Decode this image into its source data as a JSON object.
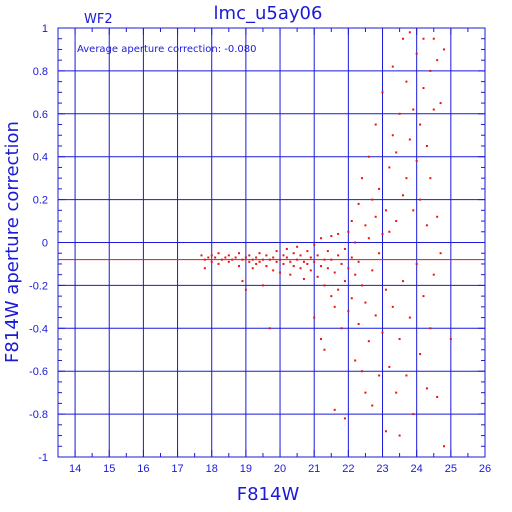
{
  "chart_data": {
    "type": "scatter",
    "title": "lmc_u5ay06",
    "chip_label": "WF2",
    "xlabel": "F814W",
    "ylabel": "F814W aperture correction",
    "annotation": "Average aperture correction: -0.080",
    "average": -0.08,
    "xlim": [
      13.5,
      26
    ],
    "ylim": [
      -1,
      1
    ],
    "x_ticks": [
      14,
      15,
      16,
      17,
      18,
      19,
      20,
      21,
      22,
      23,
      24,
      25,
      26
    ],
    "y_ticks": [
      -1,
      -0.8,
      -0.6,
      -0.4,
      -0.2,
      0,
      0.2,
      0.4,
      0.6,
      0.8,
      1
    ],
    "y_tick_labels": [
      "-1",
      "-0.8",
      "-0.6",
      "-0.4",
      "-0.2",
      "0",
      "0.2",
      "0.4",
      "0.6",
      "0.8",
      "1"
    ],
    "grid": true,
    "colors": {
      "axes": "#1a1ad8",
      "points": "#ee1111",
      "mean_line": "#ee1111"
    },
    "points": [
      [
        17.7,
        -0.06
      ],
      [
        17.8,
        -0.08
      ],
      [
        17.8,
        -0.12
      ],
      [
        17.9,
        -0.07
      ],
      [
        18.0,
        -0.09
      ],
      [
        18.0,
        -0.06
      ],
      [
        18.1,
        -0.07
      ],
      [
        18.2,
        -0.1
      ],
      [
        18.2,
        -0.05
      ],
      [
        18.3,
        -0.08
      ],
      [
        18.4,
        -0.07
      ],
      [
        18.5,
        -0.09
      ],
      [
        18.5,
        -0.06
      ],
      [
        18.6,
        -0.08
      ],
      [
        18.7,
        -0.07
      ],
      [
        18.8,
        -0.11
      ],
      [
        18.8,
        -0.05
      ],
      [
        18.9,
        -0.08
      ],
      [
        18.9,
        -0.18
      ],
      [
        19.0,
        -0.07
      ],
      [
        19.0,
        -0.22
      ],
      [
        19.1,
        -0.09
      ],
      [
        19.1,
        -0.06
      ],
      [
        19.2,
        -0.08
      ],
      [
        19.2,
        -0.12
      ],
      [
        19.3,
        -0.07
      ],
      [
        19.3,
        -0.1
      ],
      [
        19.4,
        -0.05
      ],
      [
        19.4,
        -0.09
      ],
      [
        19.5,
        -0.08
      ],
      [
        19.5,
        -0.2
      ],
      [
        19.6,
        -0.06
      ],
      [
        19.6,
        -0.11
      ],
      [
        19.7,
        -0.08
      ],
      [
        19.7,
        -0.4
      ],
      [
        19.8,
        -0.07
      ],
      [
        19.8,
        -0.13
      ],
      [
        19.9,
        -0.09
      ],
      [
        19.9,
        -0.04
      ],
      [
        20.0,
        -0.08
      ],
      [
        20.0,
        -0.14
      ],
      [
        20.1,
        -0.06
      ],
      [
        20.1,
        -0.1
      ],
      [
        20.2,
        -0.07
      ],
      [
        20.2,
        -0.03
      ],
      [
        20.3,
        -0.09
      ],
      [
        20.3,
        -0.15
      ],
      [
        20.4,
        -0.05
      ],
      [
        20.4,
        -0.11
      ],
      [
        20.5,
        -0.08
      ],
      [
        20.5,
        -0.02
      ],
      [
        20.6,
        -0.12
      ],
      [
        20.6,
        -0.06
      ],
      [
        20.7,
        -0.09
      ],
      [
        20.7,
        -0.17
      ],
      [
        20.8,
        -0.04
      ],
      [
        20.8,
        -0.1
      ],
      [
        20.9,
        -0.07
      ],
      [
        20.9,
        -0.13
      ],
      [
        21.0,
        -0.01
      ],
      [
        21.0,
        -0.09
      ],
      [
        21.0,
        -0.35
      ],
      [
        21.1,
        -0.06
      ],
      [
        21.1,
        -0.16
      ],
      [
        21.2,
        -0.11
      ],
      [
        21.2,
        0.02
      ],
      [
        21.2,
        -0.45
      ],
      [
        21.3,
        -0.08
      ],
      [
        21.3,
        -0.2
      ],
      [
        21.3,
        -0.5
      ],
      [
        21.4,
        -0.04
      ],
      [
        21.4,
        -0.12
      ],
      [
        21.5,
        0.03
      ],
      [
        21.5,
        -0.25
      ],
      [
        21.5,
        -0.08
      ],
      [
        21.6,
        -0.14
      ],
      [
        21.6,
        -0.3
      ],
      [
        21.6,
        -0.78
      ],
      [
        21.7,
        -0.06
      ],
      [
        21.7,
        0.04
      ],
      [
        21.7,
        -0.22
      ],
      [
        21.8,
        -0.1
      ],
      [
        21.8,
        -0.4
      ],
      [
        21.9,
        -0.03
      ],
      [
        21.9,
        -0.18
      ],
      [
        21.9,
        -0.82
      ],
      [
        22.0,
        0.05
      ],
      [
        22.0,
        -0.12
      ],
      [
        22.0,
        -0.32
      ],
      [
        22.1,
        -0.07
      ],
      [
        22.1,
        -0.26
      ],
      [
        22.1,
        0.1
      ],
      [
        22.2,
        -0.15
      ],
      [
        22.2,
        -0.55
      ],
      [
        22.2,
        0.0
      ],
      [
        22.3,
        -0.09
      ],
      [
        22.3,
        -0.38
      ],
      [
        22.3,
        0.18
      ],
      [
        22.4,
        -0.2
      ],
      [
        22.4,
        0.3
      ],
      [
        22.4,
        -0.6
      ],
      [
        22.5,
        0.08
      ],
      [
        22.5,
        -0.28
      ],
      [
        22.5,
        -0.7
      ],
      [
        22.6,
        0.02
      ],
      [
        22.6,
        0.4
      ],
      [
        22.6,
        -0.46
      ],
      [
        22.7,
        -0.13
      ],
      [
        22.7,
        0.2
      ],
      [
        22.7,
        -0.76
      ],
      [
        22.8,
        0.12
      ],
      [
        22.8,
        -0.34
      ],
      [
        22.8,
        0.55
      ],
      [
        22.9,
        -0.05
      ],
      [
        22.9,
        -0.62
      ],
      [
        22.9,
        0.25
      ],
      [
        23.0,
        0.04
      ],
      [
        23.0,
        -0.42
      ],
      [
        23.0,
        0.7
      ],
      [
        23.1,
        0.15
      ],
      [
        23.1,
        -0.88
      ],
      [
        23.1,
        -0.22
      ],
      [
        23.2,
        0.35
      ],
      [
        23.2,
        -0.58
      ],
      [
        23.2,
        0.05
      ],
      [
        23.3,
        0.5
      ],
      [
        23.3,
        -0.3
      ],
      [
        23.3,
        0.82
      ],
      [
        23.4,
        0.1
      ],
      [
        23.4,
        -0.7
      ],
      [
        23.4,
        0.42
      ],
      [
        23.5,
        0.6
      ],
      [
        23.5,
        -0.45
      ],
      [
        23.5,
        -0.9
      ],
      [
        23.6,
        0.22
      ],
      [
        23.6,
        0.95
      ],
      [
        23.6,
        -0.18
      ],
      [
        23.7,
        0.3
      ],
      [
        23.7,
        -0.62
      ],
      [
        23.7,
        0.75
      ],
      [
        23.8,
        0.48
      ],
      [
        23.8,
        -0.35
      ],
      [
        23.8,
        0.98
      ],
      [
        23.9,
        0.15
      ],
      [
        23.9,
        -0.8
      ],
      [
        23.9,
        0.62
      ],
      [
        24.0,
        0.38
      ],
      [
        24.0,
        -0.1
      ],
      [
        24.0,
        0.88
      ],
      [
        24.1,
        0.55
      ],
      [
        24.1,
        -0.52
      ],
      [
        24.1,
        0.2
      ],
      [
        24.2,
        0.72
      ],
      [
        24.2,
        -0.25
      ],
      [
        24.2,
        0.95
      ],
      [
        24.3,
        0.45
      ],
      [
        24.3,
        -0.68
      ],
      [
        24.3,
        0.08
      ],
      [
        24.4,
        0.8
      ],
      [
        24.4,
        0.3
      ],
      [
        24.4,
        -0.4
      ],
      [
        24.5,
        0.95
      ],
      [
        24.5,
        0.62
      ],
      [
        24.5,
        -0.15
      ],
      [
        24.6,
        0.85
      ],
      [
        24.6,
        -0.72
      ],
      [
        24.6,
        0.12
      ],
      [
        24.7,
        0.65
      ],
      [
        24.7,
        -0.05
      ],
      [
        24.8,
        0.9
      ],
      [
        24.8,
        -0.95
      ],
      [
        25.0,
        -0.45
      ]
    ]
  }
}
